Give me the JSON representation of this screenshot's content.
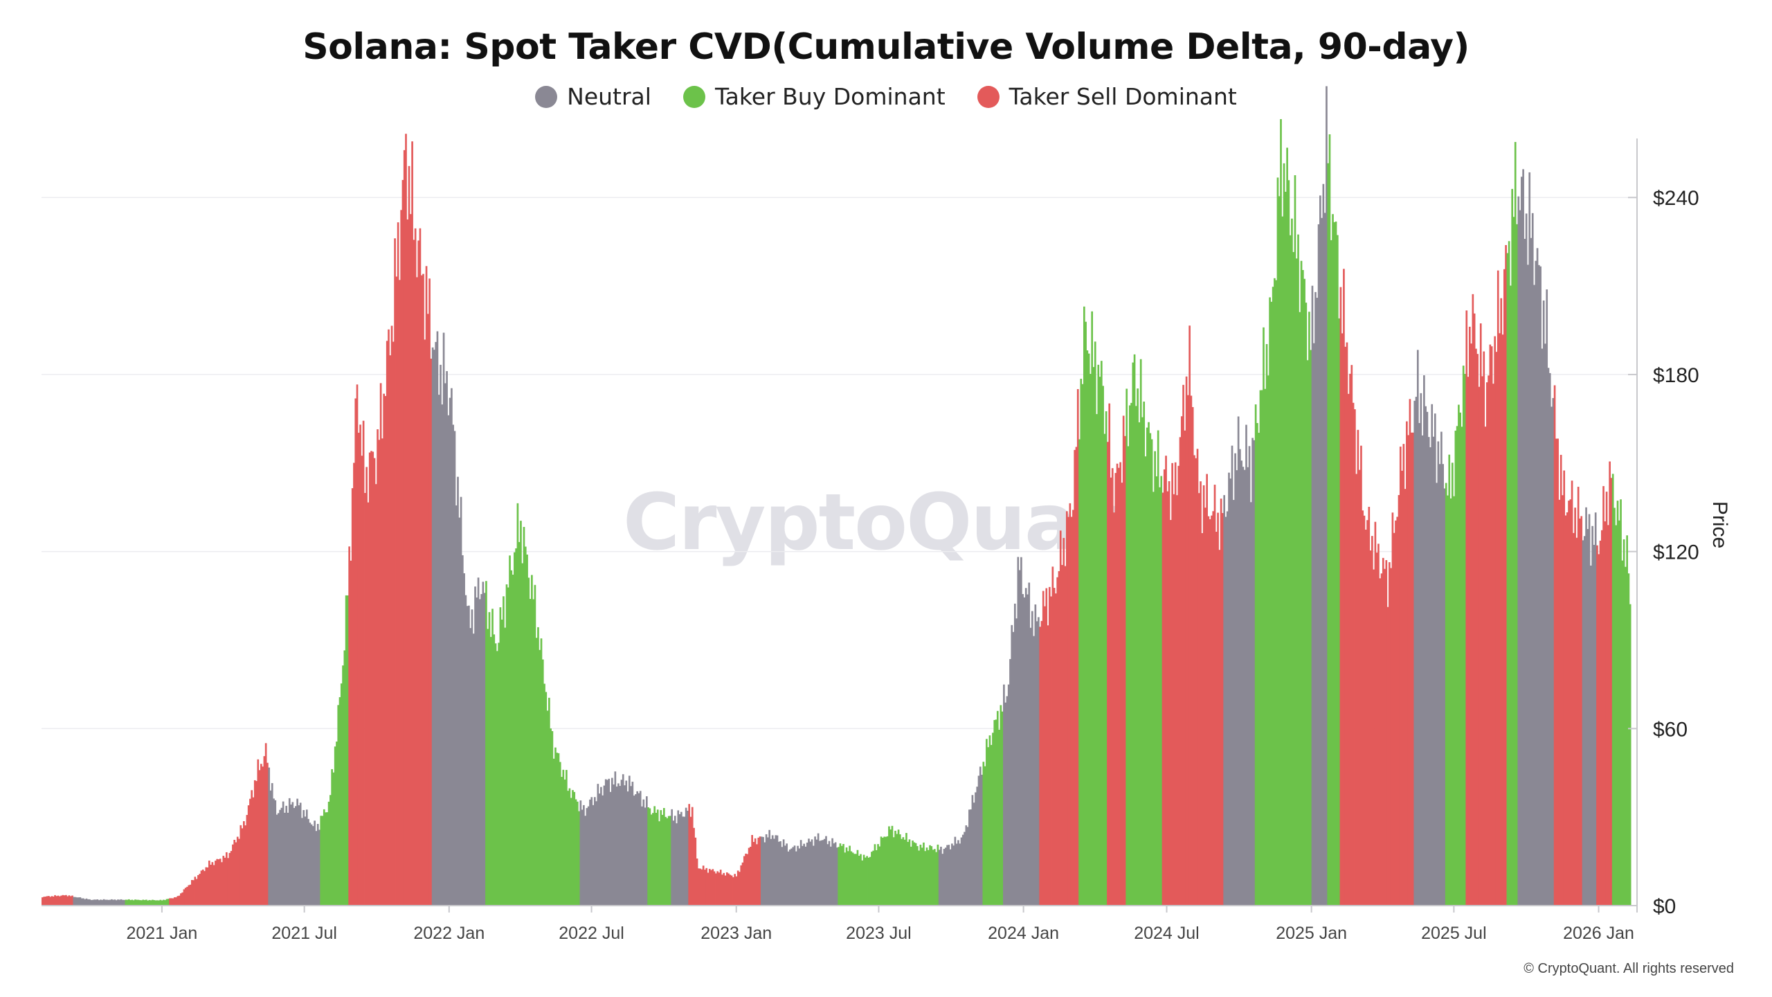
{
  "title": "Solana: Spot Taker CVD(Cumulative Volume Delta, 90-day)",
  "legend": [
    {
      "label": "Neutral",
      "color": "#8a8894"
    },
    {
      "label": "Taker Buy Dominant",
      "color": "#6cc24a"
    },
    {
      "label": "Taker Sell Dominant",
      "color": "#e35a5a"
    }
  ],
  "watermark": "CryptoQuant",
  "footer": "© CryptoQuant. All rights reserved",
  "chart_data": {
    "type": "bar",
    "title": "Solana: Spot Taker CVD(Cumulative Volume Delta, 90-day)",
    "ylabel": "Price",
    "ylim": [
      0,
      260
    ],
    "yticks": [
      "$0",
      "$60",
      "$120",
      "$180",
      "$240"
    ],
    "ytick_values": [
      0,
      60,
      120,
      180,
      240
    ],
    "xticks": [
      "2021 Jan",
      "2021 Jul",
      "2022 Jan",
      "2022 Jul",
      "2023 Jan",
      "2023 Jul",
      "2024 Jan",
      "2024 Jul",
      "2025 Jan",
      "2025 Jul",
      "2026 Jan"
    ],
    "xtick_dates": [
      "2021-01-01",
      "2021-07-01",
      "2022-01-01",
      "2022-07-01",
      "2023-01-01",
      "2023-07-01",
      "2024-01-01",
      "2024-07-01",
      "2025-01-01",
      "2025-07-01",
      "2026-01-01"
    ],
    "x_range": [
      "2020-08-01",
      "2026-02-10"
    ],
    "grid": true,
    "legend_position": "top-center",
    "series_colors": {
      "neutral": "#8a8894",
      "buy": "#6cc24a",
      "sell": "#e35a5a"
    },
    "price_points": [
      [
        "2020-08-01",
        3
      ],
      [
        "2020-09-01",
        3.5
      ],
      [
        "2020-10-01",
        2
      ],
      [
        "2020-11-15",
        2
      ],
      [
        "2020-12-31",
        1.8
      ],
      [
        "2021-01-20",
        3
      ],
      [
        "2021-02-10",
        9
      ],
      [
        "2021-03-01",
        14
      ],
      [
        "2021-03-25",
        17
      ],
      [
        "2021-04-15",
        28
      ],
      [
        "2021-05-01",
        45
      ],
      [
        "2021-05-12",
        52
      ],
      [
        "2021-05-25",
        32
      ],
      [
        "2021-06-20",
        35
      ],
      [
        "2021-07-15",
        26
      ],
      [
        "2021-08-01",
        35
      ],
      [
        "2021-08-15",
        72
      ],
      [
        "2021-08-25",
        110
      ],
      [
        "2021-09-05",
        175
      ],
      [
        "2021-09-15",
        145
      ],
      [
        "2021-10-01",
        155
      ],
      [
        "2021-10-20",
        200
      ],
      [
        "2021-11-06",
        255
      ],
      [
        "2021-11-20",
        225
      ],
      [
        "2021-12-15",
        185
      ],
      [
        "2022-01-01",
        175
      ],
      [
        "2022-01-25",
        95
      ],
      [
        "2022-02-10",
        110
      ],
      [
        "2022-03-01",
        88
      ],
      [
        "2022-03-31",
        130
      ],
      [
        "2022-04-20",
        100
      ],
      [
        "2022-05-12",
        55
      ],
      [
        "2022-06-01",
        40
      ],
      [
        "2022-06-20",
        32
      ],
      [
        "2022-07-20",
        42
      ],
      [
        "2022-08-15",
        42
      ],
      [
        "2022-09-15",
        32
      ],
      [
        "2022-10-15",
        30
      ],
      [
        "2022-11-05",
        33
      ],
      [
        "2022-11-12",
        13
      ],
      [
        "2022-12-31",
        10
      ],
      [
        "2023-01-20",
        22
      ],
      [
        "2023-02-15",
        24
      ],
      [
        "2023-03-10",
        19
      ],
      [
        "2023-04-15",
        23
      ],
      [
        "2023-05-15",
        20
      ],
      [
        "2023-06-15",
        16
      ],
      [
        "2023-07-15",
        26
      ],
      [
        "2023-08-20",
        20
      ],
      [
        "2023-09-20",
        19
      ],
      [
        "2023-10-15",
        23
      ],
      [
        "2023-11-01",
        40
      ],
      [
        "2023-11-20",
        58
      ],
      [
        "2023-12-10",
        72
      ],
      [
        "2023-12-25",
        115
      ],
      [
        "2024-01-15",
        95
      ],
      [
        "2024-02-10",
        110
      ],
      [
        "2024-03-01",
        135
      ],
      [
        "2024-03-18",
        195
      ],
      [
        "2024-04-10",
        175
      ],
      [
        "2024-04-25",
        140
      ],
      [
        "2024-05-20",
        180
      ],
      [
        "2024-06-15",
        150
      ],
      [
        "2024-07-10",
        140
      ],
      [
        "2024-07-28",
        185
      ],
      [
        "2024-08-10",
        140
      ],
      [
        "2024-09-07",
        130
      ],
      [
        "2024-09-28",
        155
      ],
      [
        "2024-10-15",
        150
      ],
      [
        "2024-11-10",
        200
      ],
      [
        "2024-11-23",
        255
      ],
      [
        "2024-12-15",
        220
      ],
      [
        "2024-12-31",
        190
      ],
      [
        "2025-01-19",
        260
      ],
      [
        "2025-02-05",
        210
      ],
      [
        "2025-02-20",
        175
      ],
      [
        "2025-03-10",
        130
      ],
      [
        "2025-04-07",
        110
      ],
      [
        "2025-04-25",
        150
      ],
      [
        "2025-05-15",
        175
      ],
      [
        "2025-06-10",
        155
      ],
      [
        "2025-06-25",
        140
      ],
      [
        "2025-07-22",
        200
      ],
      [
        "2025-08-10",
        175
      ],
      [
        "2025-08-30",
        205
      ],
      [
        "2025-09-18",
        245
      ],
      [
        "2025-10-10",
        225
      ],
      [
        "2025-10-25",
        195
      ],
      [
        "2025-11-15",
        140
      ],
      [
        "2025-12-10",
        130
      ],
      [
        "2025-12-31",
        123
      ],
      [
        "2026-01-15",
        145
      ],
      [
        "2026-02-05",
        118
      ],
      [
        "2026-02-10",
        100
      ]
    ],
    "regimes": [
      [
        "2020-08-01",
        "2020-09-10",
        "sell"
      ],
      [
        "2020-09-10",
        "2020-11-15",
        "neutral"
      ],
      [
        "2020-11-15",
        "2021-01-10",
        "buy"
      ],
      [
        "2021-01-10",
        "2021-05-15",
        "sell"
      ],
      [
        "2021-05-15",
        "2021-07-20",
        "neutral"
      ],
      [
        "2021-07-20",
        "2021-08-25",
        "buy"
      ],
      [
        "2021-08-25",
        "2021-12-10",
        "sell"
      ],
      [
        "2021-12-10",
        "2022-02-15",
        "neutral"
      ],
      [
        "2022-02-15",
        "2022-06-15",
        "buy"
      ],
      [
        "2022-06-15",
        "2022-09-10",
        "neutral"
      ],
      [
        "2022-09-10",
        "2022-10-10",
        "buy"
      ],
      [
        "2022-10-10",
        "2022-11-01",
        "neutral"
      ],
      [
        "2022-11-01",
        "2023-02-01",
        "sell"
      ],
      [
        "2023-02-01",
        "2023-05-10",
        "neutral"
      ],
      [
        "2023-05-10",
        "2023-09-15",
        "buy"
      ],
      [
        "2023-09-15",
        "2023-11-10",
        "neutral"
      ],
      [
        "2023-11-10",
        "2023-12-05",
        "buy"
      ],
      [
        "2023-12-05",
        "2024-01-20",
        "neutral"
      ],
      [
        "2024-01-20",
        "2024-03-10",
        "sell"
      ],
      [
        "2024-03-10",
        "2024-04-15",
        "buy"
      ],
      [
        "2024-04-15",
        "2024-05-10",
        "sell"
      ],
      [
        "2024-05-10",
        "2024-06-25",
        "buy"
      ],
      [
        "2024-06-25",
        "2024-09-10",
        "sell"
      ],
      [
        "2024-09-10",
        "2024-10-20",
        "neutral"
      ],
      [
        "2024-10-20",
        "2024-12-31",
        "buy"
      ],
      [
        "2024-12-31",
        "2025-01-20",
        "neutral"
      ],
      [
        "2025-01-20",
        "2025-02-05",
        "buy"
      ],
      [
        "2025-02-05",
        "2025-05-10",
        "sell"
      ],
      [
        "2025-05-10",
        "2025-06-20",
        "neutral"
      ],
      [
        "2025-06-20",
        "2025-07-15",
        "buy"
      ],
      [
        "2025-07-15",
        "2025-09-05",
        "sell"
      ],
      [
        "2025-09-05",
        "2025-09-20",
        "buy"
      ],
      [
        "2025-09-20",
        "2025-11-05",
        "neutral"
      ],
      [
        "2025-11-05",
        "2025-12-10",
        "sell"
      ],
      [
        "2025-12-10",
        "2025-12-28",
        "neutral"
      ],
      [
        "2025-12-28",
        "2026-01-18",
        "sell"
      ],
      [
        "2026-01-18",
        "2026-02-10",
        "buy"
      ]
    ]
  }
}
